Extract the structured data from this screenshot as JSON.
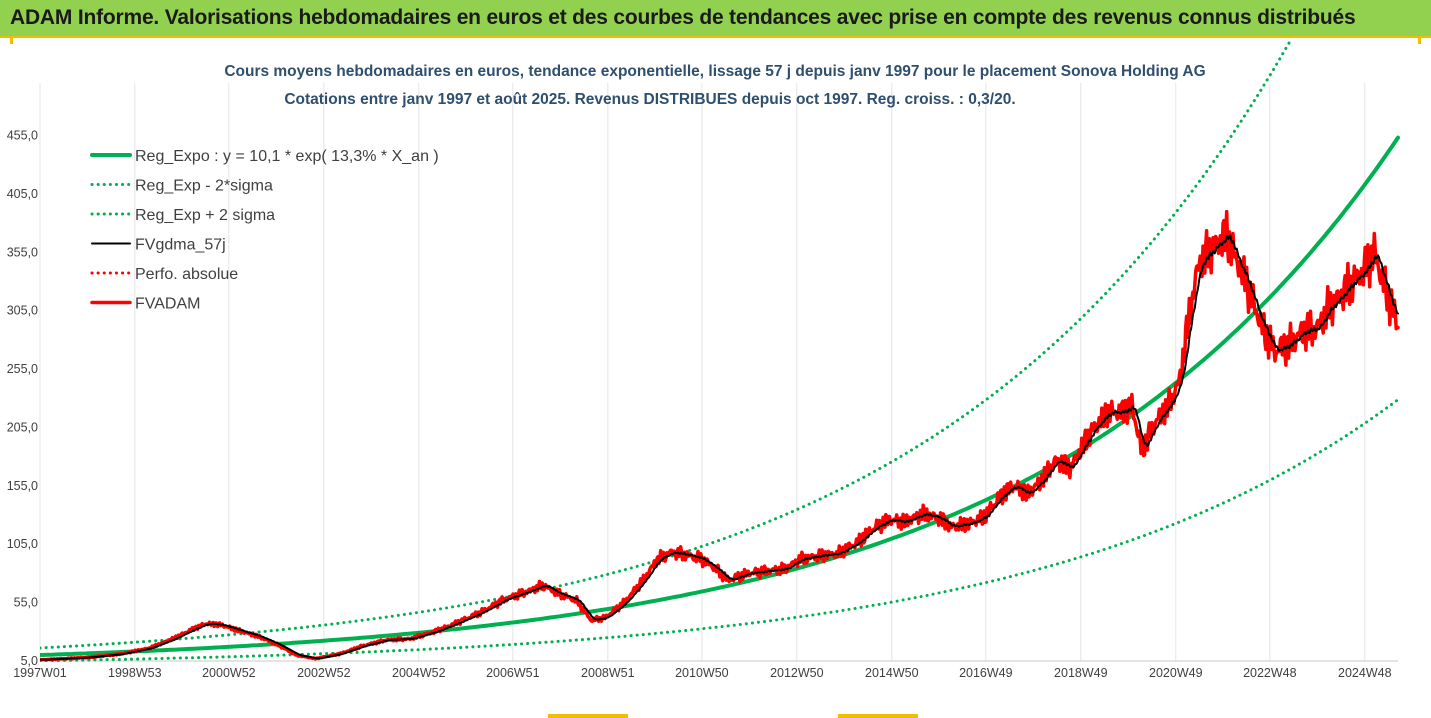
{
  "banner": {
    "text": "ADAM Informe. Valorisations hebdomadaires en euros et des courbes de tendances avec prise en compte des revenus connus distribués"
  },
  "chart_data": {
    "type": "line",
    "title": "Cours moyens hebdomadaires en euros, tendance exponentielle, lissage 57 j depuis janv 1997 pour le placement Sonova Holding AG",
    "subtitle": "Cotations entre janv 1997 et août 2025. Revenus DISTRIBUES depuis oct 1997. Reg. croiss. : 0,3/20.",
    "xlabel": "",
    "ylabel": "",
    "ylim": [
      5,
      500
    ],
    "y_ticks": [
      "5,0",
      "55,0",
      "105,0",
      "155,0",
      "205,0",
      "255,0",
      "305,0",
      "355,0",
      "405,0",
      "455,0"
    ],
    "x_ticks": [
      "1997W01",
      "1998W53",
      "2000W52",
      "2002W52",
      "2004W52",
      "2006W51",
      "2008W51",
      "2010W50",
      "2012W50",
      "2014W50",
      "2016W49",
      "2018W49",
      "2020W49",
      "2022W48",
      "2024W48"
    ],
    "x_range_years": [
      1997.0,
      2025.6
    ],
    "grid": "vertical",
    "legend_position": "top-left",
    "regression": {
      "a": 10.1,
      "rate": 0.133,
      "t0": 1997.0
    },
    "series": [
      {
        "name": "Reg_Expo : y = 10,1 * exp( 13,3% *  X_an )",
        "color": "#00b050",
        "style": "solid",
        "width": 4,
        "kind": "reg",
        "factor": 1.0
      },
      {
        "name": "Reg_Exp - 2*sigma",
        "color": "#00b050",
        "style": "dotted",
        "width": 3,
        "kind": "reg",
        "factor": 0.505
      },
      {
        "name": "Reg_Exp + 2 sigma",
        "color": "#00b050",
        "style": "dotted",
        "width": 3,
        "kind": "reg",
        "factor": 1.6
      },
      {
        "name": "FVgdma_57j",
        "color": "#000000",
        "style": "solid",
        "width": 2,
        "kind": "smooth"
      },
      {
        "name": "Perfo. absolue",
        "color": "#ff0000",
        "style": "dotted",
        "width": 2,
        "kind": "legend-only"
      },
      {
        "name": "FVADAM",
        "color": "#ff0000",
        "style": "solid",
        "width": 3.5,
        "kind": "price"
      }
    ],
    "price_points": [
      [
        1997.0,
        6
      ],
      [
        1998.0,
        8
      ],
      [
        1998.7,
        11
      ],
      [
        1999.3,
        16
      ],
      [
        1999.8,
        24
      ],
      [
        2000.2,
        32
      ],
      [
        2000.5,
        37
      ],
      [
        2000.8,
        36
      ],
      [
        2001.2,
        31
      ],
      [
        2001.6,
        26
      ],
      [
        2002.0,
        19
      ],
      [
        2002.4,
        10
      ],
      [
        2002.8,
        7
      ],
      [
        2003.3,
        11
      ],
      [
        2003.8,
        18
      ],
      [
        2004.3,
        23
      ],
      [
        2004.8,
        24
      ],
      [
        2005.3,
        30
      ],
      [
        2005.8,
        38
      ],
      [
        2006.3,
        47
      ],
      [
        2006.8,
        58
      ],
      [
        2007.3,
        65
      ],
      [
        2007.6,
        70
      ],
      [
        2007.9,
        63
      ],
      [
        2008.3,
        57
      ],
      [
        2008.6,
        40
      ],
      [
        2008.9,
        42
      ],
      [
        2009.3,
        55
      ],
      [
        2009.7,
        74
      ],
      [
        2010.0,
        92
      ],
      [
        2010.3,
        98
      ],
      [
        2010.6,
        96
      ],
      [
        2010.9,
        93
      ],
      [
        2011.2,
        85
      ],
      [
        2011.5,
        74
      ],
      [
        2011.9,
        80
      ],
      [
        2012.3,
        82
      ],
      [
        2012.7,
        84
      ],
      [
        2013.0,
        92
      ],
      [
        2013.4,
        95
      ],
      [
        2013.8,
        97
      ],
      [
        2014.2,
        106
      ],
      [
        2014.6,
        120
      ],
      [
        2014.9,
        126
      ],
      [
        2015.2,
        124
      ],
      [
        2015.6,
        131
      ],
      [
        2015.9,
        128
      ],
      [
        2016.2,
        120
      ],
      [
        2016.6,
        123
      ],
      [
        2016.9,
        129
      ],
      [
        2017.2,
        145
      ],
      [
        2017.5,
        155
      ],
      [
        2017.8,
        148
      ],
      [
        2018.1,
        160
      ],
      [
        2018.4,
        177
      ],
      [
        2018.7,
        170
      ],
      [
        2018.9,
        185
      ],
      [
        2019.2,
        205
      ],
      [
        2019.5,
        218
      ],
      [
        2019.8,
        218
      ],
      [
        2020.0,
        224
      ],
      [
        2020.2,
        185
      ],
      [
        2020.5,
        210
      ],
      [
        2020.8,
        226
      ],
      [
        2021.0,
        245
      ],
      [
        2021.2,
        300
      ],
      [
        2021.4,
        345
      ],
      [
        2021.7,
        358
      ],
      [
        2022.0,
        370
      ],
      [
        2022.2,
        348
      ],
      [
        2022.4,
        330
      ],
      [
        2022.7,
        295
      ],
      [
        2023.0,
        270
      ],
      [
        2023.3,
        276
      ],
      [
        2023.6,
        287
      ],
      [
        2023.9,
        290
      ],
      [
        2024.1,
        305
      ],
      [
        2024.4,
        318
      ],
      [
        2024.6,
        328
      ],
      [
        2024.9,
        340
      ],
      [
        2025.1,
        355
      ],
      [
        2025.3,
        328
      ],
      [
        2025.6,
        292
      ]
    ]
  }
}
